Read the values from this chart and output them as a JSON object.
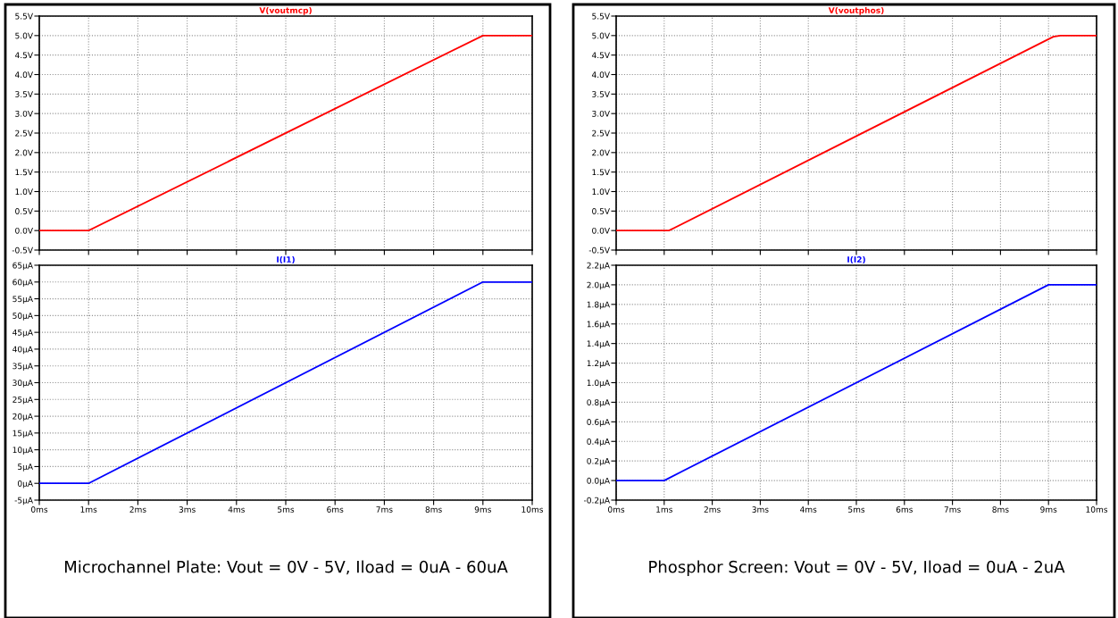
{
  "chart_data": [
    {
      "type": "line",
      "x": [
        0,
        1,
        9,
        10
      ],
      "tick_labels": "y",
      "grid": true,
      "legend": "top",
      "series": [
        {
          "name": "V(voutmcp)",
          "color": "#ff0000",
          "values": [
            0,
            0,
            5.0,
            5.0
          ]
        }
      ],
      "xlim": [
        0,
        10
      ],
      "xticks": [
        0,
        1,
        2,
        3,
        4,
        5,
        6,
        7,
        8,
        9,
        10
      ],
      "ylim": [
        -0.5,
        5.5
      ],
      "yticks": [
        {
          "value": -0.5,
          "label": "-0.5V"
        },
        {
          "value": 0,
          "label": "0.0V"
        },
        {
          "value": 0.5,
          "label": "0.5V"
        },
        {
          "value": 1,
          "label": "1.0V"
        },
        {
          "value": 1.5,
          "label": "1.5V"
        },
        {
          "value": 2,
          "label": "2.0V"
        },
        {
          "value": 2.5,
          "label": "2.5V"
        },
        {
          "value": 3,
          "label": "3.0V"
        },
        {
          "value": 3.5,
          "label": "3.5V"
        },
        {
          "value": 4,
          "label": "4.0V"
        },
        {
          "value": 4.5,
          "label": "4.5V"
        },
        {
          "value": 5,
          "label": "5.0V"
        },
        {
          "value": 5.5,
          "label": "5.5V"
        }
      ]
    },
    {
      "type": "line",
      "x": [
        0,
        1,
        9,
        10
      ],
      "grid": true,
      "legend": "top",
      "series": [
        {
          "name": "I(I1)",
          "color": "#0000ff",
          "values": [
            0,
            0,
            60,
            60
          ]
        }
      ],
      "xlim": [
        0,
        10
      ],
      "xticks": [
        {
          "value": 0,
          "label": "0ms"
        },
        {
          "value": 1,
          "label": "1ms"
        },
        {
          "value": 2,
          "label": "2ms"
        },
        {
          "value": 3,
          "label": "3ms"
        },
        {
          "value": 4,
          "label": "4ms"
        },
        {
          "value": 5,
          "label": "5ms"
        },
        {
          "value": 6,
          "label": "6ms"
        },
        {
          "value": 7,
          "label": "7ms"
        },
        {
          "value": 8,
          "label": "8ms"
        },
        {
          "value": 9,
          "label": "9ms"
        },
        {
          "value": 10,
          "label": "10ms"
        }
      ],
      "ylim": [
        -5,
        65
      ],
      "yticks": [
        {
          "value": -5,
          "label": "-5µA"
        },
        {
          "value": 0,
          "label": "0µA"
        },
        {
          "value": 5,
          "label": "5µA"
        },
        {
          "value": 10,
          "label": "10µA"
        },
        {
          "value": 15,
          "label": "15µA"
        },
        {
          "value": 20,
          "label": "20µA"
        },
        {
          "value": 25,
          "label": "25µA"
        },
        {
          "value": 30,
          "label": "30µA"
        },
        {
          "value": 35,
          "label": "35µA"
        },
        {
          "value": 40,
          "label": "40µA"
        },
        {
          "value": 45,
          "label": "45µA"
        },
        {
          "value": 50,
          "label": "50µA"
        },
        {
          "value": 55,
          "label": "55µA"
        },
        {
          "value": 60,
          "label": "60µA"
        },
        {
          "value": 65,
          "label": "65µA"
        }
      ],
      "annotations": [
        "Microchannel Plate: Vout = 0V - 5V, Iload = 0uA - 60uA"
      ]
    },
    {
      "type": "line",
      "x": [
        0,
        1.1,
        9.1,
        9.25,
        10
      ],
      "tick_labels": "y",
      "grid": true,
      "legend": "top",
      "series": [
        {
          "name": "V(voutphos)",
          "color": "#ff0000",
          "values": [
            0,
            0,
            4.97,
            5.0,
            5.0
          ]
        }
      ],
      "xlim": [
        0,
        10
      ],
      "xticks": [
        0,
        1,
        2,
        3,
        4,
        5,
        6,
        7,
        8,
        9,
        10
      ],
      "ylim": [
        -0.5,
        5.5
      ],
      "yticks": [
        {
          "value": -0.5,
          "label": "-0.5V"
        },
        {
          "value": 0,
          "label": "0.0V"
        },
        {
          "value": 0.5,
          "label": "0.5V"
        },
        {
          "value": 1,
          "label": "1.0V"
        },
        {
          "value": 1.5,
          "label": "1.5V"
        },
        {
          "value": 2,
          "label": "2.0V"
        },
        {
          "value": 2.5,
          "label": "2.5V"
        },
        {
          "value": 3,
          "label": "3.0V"
        },
        {
          "value": 3.5,
          "label": "3.5V"
        },
        {
          "value": 4,
          "label": "4.0V"
        },
        {
          "value": 4.5,
          "label": "4.5V"
        },
        {
          "value": 5,
          "label": "5.0V"
        },
        {
          "value": 5.5,
          "label": "5.5V"
        }
      ]
    },
    {
      "type": "line",
      "x": [
        0,
        1,
        9,
        10
      ],
      "grid": true,
      "legend": "top",
      "series": [
        {
          "name": "I(I2)",
          "color": "#0000ff",
          "values": [
            0,
            0,
            2.0,
            2.0
          ]
        }
      ],
      "xlim": [
        0,
        10
      ],
      "xticks": [
        {
          "value": 0,
          "label": "0ms"
        },
        {
          "value": 1,
          "label": "1ms"
        },
        {
          "value": 2,
          "label": "2ms"
        },
        {
          "value": 3,
          "label": "3ms"
        },
        {
          "value": 4,
          "label": "4ms"
        },
        {
          "value": 5,
          "label": "5ms"
        },
        {
          "value": 6,
          "label": "6ms"
        },
        {
          "value": 7,
          "label": "7ms"
        },
        {
          "value": 8,
          "label": "8ms"
        },
        {
          "value": 9,
          "label": "9ms"
        },
        {
          "value": 10,
          "label": "10ms"
        }
      ],
      "ylim": [
        -0.2,
        2.2
      ],
      "yticks": [
        {
          "value": -0.2,
          "label": "-0.2µA"
        },
        {
          "value": 0,
          "label": "0.0µA"
        },
        {
          "value": 0.2,
          "label": "0.2µA"
        },
        {
          "value": 0.4,
          "label": "0.4µA"
        },
        {
          "value": 0.6,
          "label": "0.6µA"
        },
        {
          "value": 0.8,
          "label": "0.8µA"
        },
        {
          "value": 1.0,
          "label": "1.0µA"
        },
        {
          "value": 1.2,
          "label": "1.2µA"
        },
        {
          "value": 1.4,
          "label": "1.4µA"
        },
        {
          "value": 1.6,
          "label": "1.6µA"
        },
        {
          "value": 1.8,
          "label": "1.8µA"
        },
        {
          "value": 2.0,
          "label": "2.0µA"
        },
        {
          "value": 2.2,
          "label": "2.2µA"
        }
      ],
      "annotations": [
        "Phosphor Screen: Vout = 0V - 5V, Iload = 0uA - 2uA"
      ]
    }
  ]
}
